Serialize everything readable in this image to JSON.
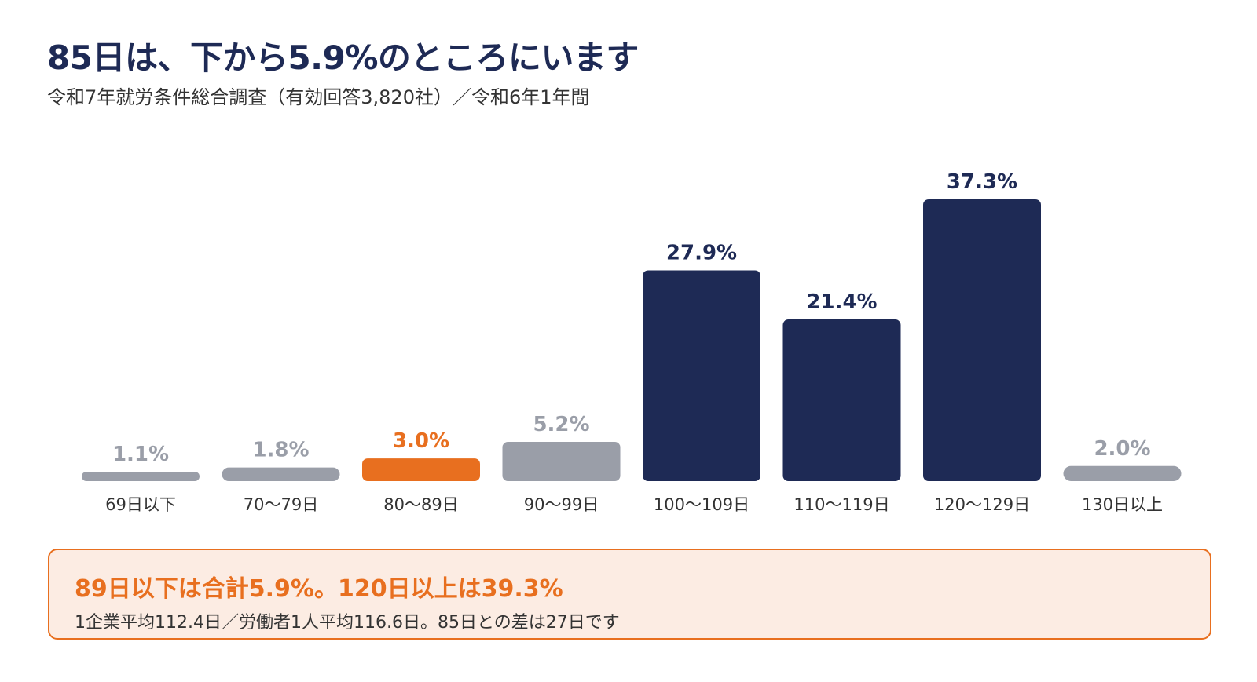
{
  "header": {
    "title": "85日は、下から5.9%のところにいます",
    "subtitle": "令和7年就労条件総合調査（有効回答3,820社）／令和6年1年間"
  },
  "colors": {
    "navy": "#1e2a55",
    "gray": "#9a9ea8",
    "orange": "#e86f1f"
  },
  "chart_data": {
    "type": "bar",
    "categories": [
      "69日以下",
      "70～79日",
      "80～89日",
      "90～99日",
      "100～109日",
      "110～119日",
      "120～129日",
      "130日以上"
    ],
    "values": [
      1.1,
      1.8,
      3.0,
      5.2,
      27.9,
      21.4,
      37.3,
      2.0
    ],
    "value_labels": [
      "1.1%",
      "1.8%",
      "3.0%",
      "5.2%",
      "27.9%",
      "21.4%",
      "37.3%",
      "2.0%"
    ],
    "bar_styles": [
      "gray",
      "gray",
      "orange",
      "gray",
      "navy",
      "navy",
      "navy",
      "gray"
    ],
    "ylim": [
      0,
      37.3
    ],
    "grid": false,
    "legend": "none"
  },
  "callout": {
    "headline": "89日以下は合計5.9%。120日以上は39.3%",
    "detail": "1企業平均112.4日／労働者1人平均116.6日。85日との差は27日です"
  }
}
